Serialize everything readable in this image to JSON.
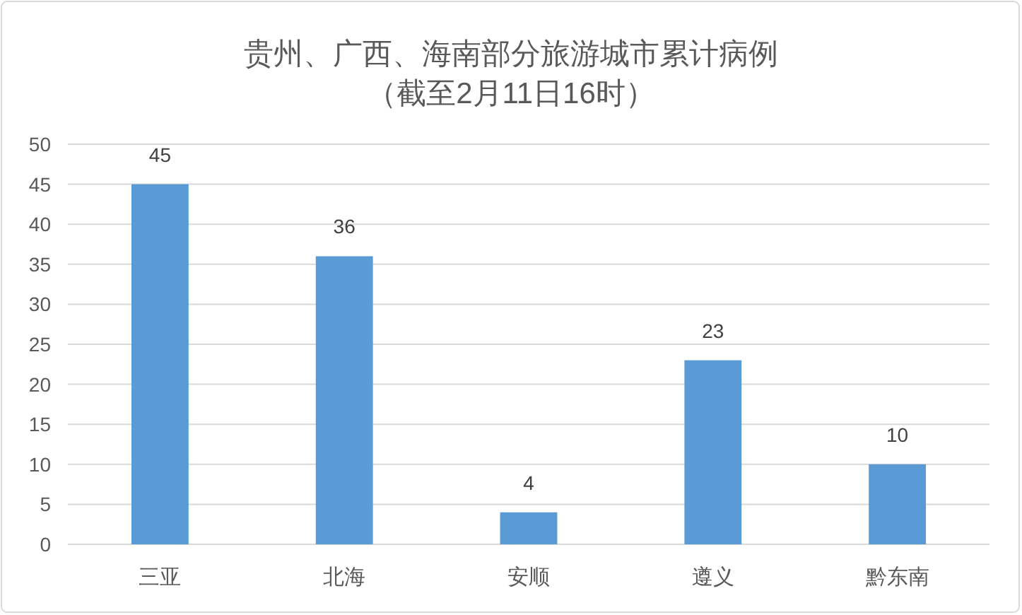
{
  "chart_data": {
    "type": "bar",
    "title": "贵州、广西、海南部分旅游城市累计病例",
    "subtitle": "（截至2月11日16时）",
    "categories": [
      "三亚",
      "北海",
      "安顺",
      "遵义",
      "黔东南"
    ],
    "values": [
      45,
      36,
      4,
      23,
      10
    ],
    "color": "#5b9bd5",
    "ylim": [
      0,
      50
    ],
    "yticks": [
      0,
      5,
      10,
      15,
      20,
      25,
      30,
      35,
      40,
      45,
      50
    ],
    "grid": "y",
    "data_labels": true
  }
}
